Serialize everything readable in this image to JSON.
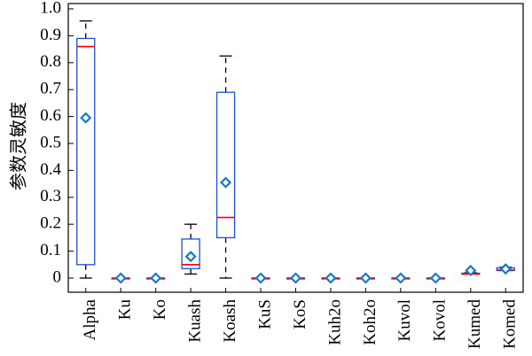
{
  "chart_data": {
    "type": "box",
    "title": "",
    "xlabel": "",
    "ylabel": "参数灵敏度",
    "ylim": [
      0,
      1.0
    ],
    "yticks": [
      "0",
      "0.1",
      "0.2",
      "0.3",
      "0.4",
      "0.5",
      "0.6",
      "0.7",
      "0.8",
      "0.9",
      "1.0"
    ],
    "grid": false,
    "legend": "none",
    "categories": [
      "Alpha",
      "Ku",
      "Ko",
      "Kuash",
      "Koash",
      "KuS",
      "KoS",
      "Kuh2o",
      "Koh2o",
      "Kuvol",
      "Kovol",
      "Kumed",
      "Komed"
    ],
    "boxes": [
      {
        "min": 0.0,
        "q1": 0.05,
        "median": 0.86,
        "q3": 0.89,
        "max": 0.955,
        "mean": 0.595
      },
      {
        "min": 0.0,
        "q1": 0.0,
        "median": 0.0,
        "q3": 0.0,
        "max": 0.0,
        "mean": 0.0
      },
      {
        "min": 0.0,
        "q1": 0.0,
        "median": 0.0,
        "q3": 0.0,
        "max": 0.0,
        "mean": 0.0
      },
      {
        "min": 0.015,
        "q1": 0.035,
        "median": 0.05,
        "q3": 0.145,
        "max": 0.2,
        "mean": 0.08
      },
      {
        "min": 0.0,
        "q1": 0.15,
        "median": 0.225,
        "q3": 0.69,
        "max": 0.825,
        "mean": 0.355
      },
      {
        "min": 0.0,
        "q1": 0.0,
        "median": 0.0,
        "q3": 0.0,
        "max": 0.0,
        "mean": 0.0
      },
      {
        "min": 0.0,
        "q1": 0.0,
        "median": 0.0,
        "q3": 0.0,
        "max": 0.0,
        "mean": 0.0
      },
      {
        "min": 0.0,
        "q1": 0.0,
        "median": 0.0,
        "q3": 0.0,
        "max": 0.0,
        "mean": 0.0
      },
      {
        "min": 0.0,
        "q1": 0.0,
        "median": 0.0,
        "q3": 0.0,
        "max": 0.0,
        "mean": 0.0
      },
      {
        "min": 0.0,
        "q1": 0.0,
        "median": 0.0,
        "q3": 0.0,
        "max": 0.0,
        "mean": 0.0
      },
      {
        "min": 0.0,
        "q1": 0.0,
        "median": 0.0,
        "q3": 0.0,
        "max": 0.0,
        "mean": 0.0
      },
      {
        "min": 0.015,
        "q1": 0.015,
        "median": 0.015,
        "q3": 0.018,
        "max": 0.02,
        "mean": 0.028
      },
      {
        "min": 0.028,
        "q1": 0.028,
        "median": 0.03,
        "q3": 0.038,
        "max": 0.04,
        "mean": 0.034
      }
    ],
    "colors": {
      "box": "#1f4fd0",
      "median": "#ff0000",
      "mean_marker": "#1a78c2",
      "whisker": "#000000",
      "axis": "#000000"
    }
  }
}
